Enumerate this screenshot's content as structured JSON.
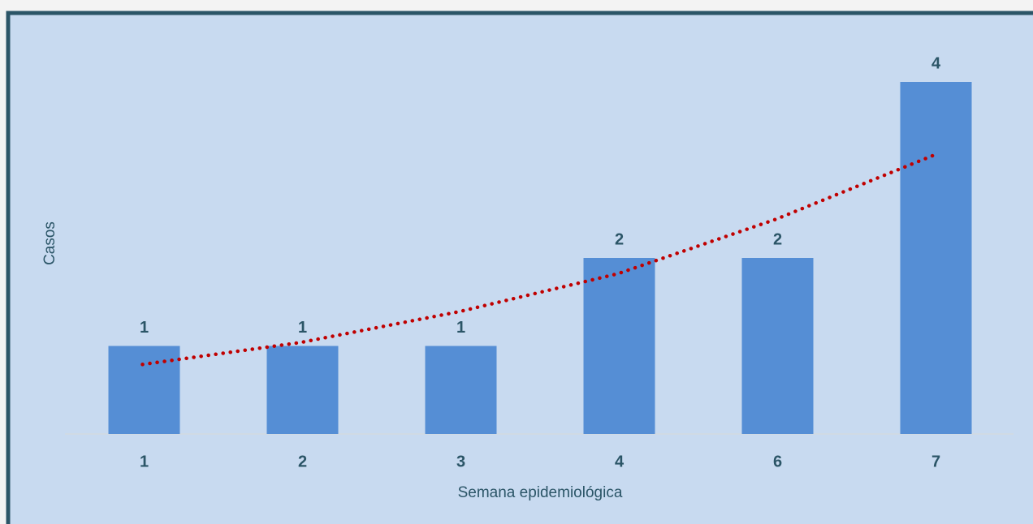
{
  "chart_data": {
    "type": "bar",
    "xlabel": "Semana epidemiológica",
    "ylabel": "Casos",
    "categories": [
      "1",
      "2",
      "3",
      "4",
      "6",
      "7"
    ],
    "values": [
      1,
      1,
      1,
      2,
      2,
      4
    ],
    "color": "#558ed5",
    "trendline": {
      "values": [
        0.79,
        1.04,
        1.39,
        1.82,
        2.44,
        3.17
      ],
      "color": "#c00000"
    },
    "ylim": [
      0,
      4
    ]
  }
}
